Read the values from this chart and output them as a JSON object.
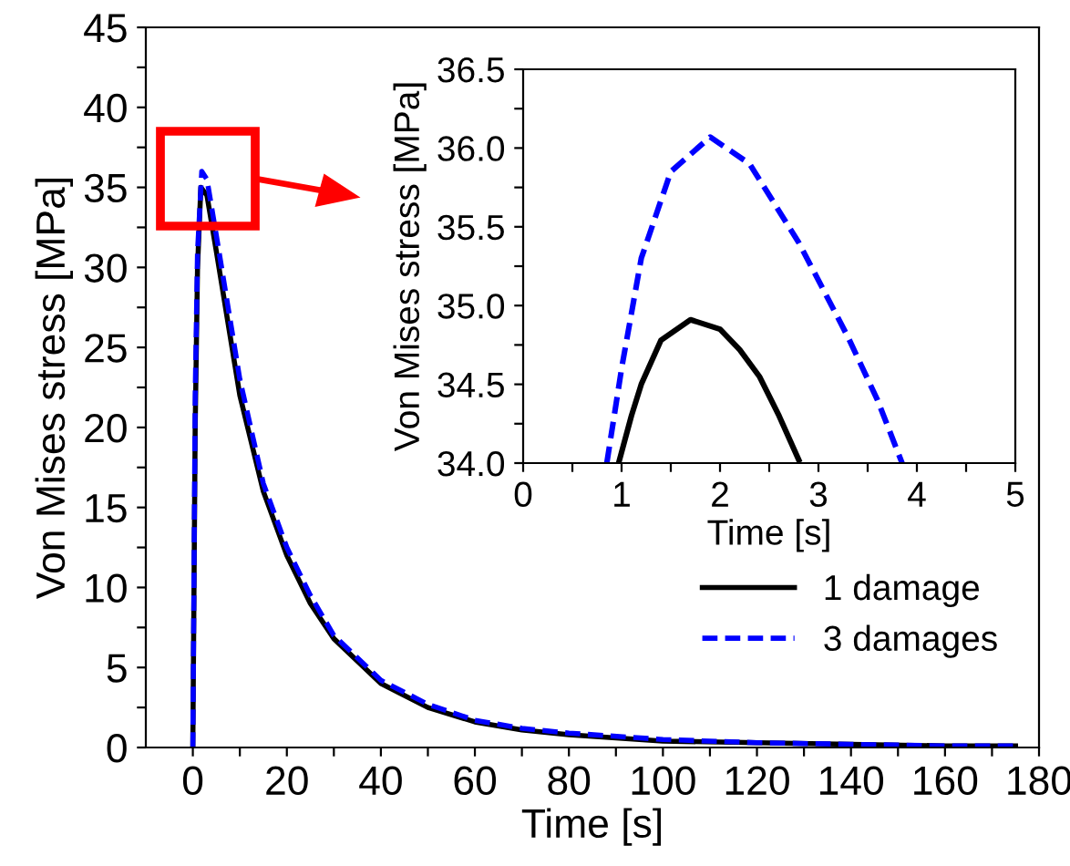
{
  "chart_data": [
    {
      "type": "line",
      "xlabel": "Time [s]",
      "ylabel": "Von Mises stress [MPa]",
      "xlim": [
        -10,
        180
      ],
      "ylim": [
        0,
        45
      ],
      "xticks": [
        0,
        {
          "value": 10,
          "label": null
        },
        20,
        {
          "value": 30,
          "label": null
        },
        40,
        {
          "value": 50,
          "label": null
        },
        60,
        {
          "value": 70,
          "label": null
        },
        80,
        {
          "value": 90,
          "label": null
        },
        100,
        {
          "value": 110,
          "label": null
        },
        120,
        {
          "value": 130,
          "label": null
        },
        140,
        {
          "value": 150,
          "label": null
        },
        160,
        {
          "value": 170,
          "label": null
        },
        180
      ],
      "yticks": [
        0,
        {
          "value": 2.5,
          "label": null
        },
        5,
        {
          "value": 7.5,
          "label": null
        },
        10,
        {
          "value": 12.5,
          "label": null
        },
        15,
        {
          "value": 17.5,
          "label": null
        },
        20,
        {
          "value": 22.5,
          "label": null
        },
        25,
        {
          "value": 27.5,
          "label": null
        },
        30,
        {
          "value": 32.5,
          "label": null
        },
        35,
        {
          "value": 37.5,
          "label": null
        },
        40,
        {
          "value": 42.5,
          "label": null
        },
        45
      ],
      "grid": false,
      "legend": "bottom right",
      "series": [
        {
          "name": "1 damage",
          "color": "#000000",
          "line_style": "solid",
          "x": [
            0,
            0.5,
            1,
            1.7,
            3,
            5,
            10,
            15,
            20,
            25,
            30,
            40,
            50,
            60,
            70,
            80,
            100,
            120,
            140,
            160,
            175
          ],
          "values": [
            0,
            20,
            30,
            35,
            34.5,
            31,
            22,
            16,
            12,
            9,
            6.8,
            4,
            2.5,
            1.6,
            1.1,
            0.8,
            0.4,
            0.3,
            0.2,
            0.1,
            0.1
          ]
        },
        {
          "name": "3 damages",
          "color": "#0000ff",
          "line_style": "dashed",
          "x": [
            0,
            0.5,
            1,
            1.9,
            3,
            5,
            10,
            15,
            20,
            25,
            30,
            40,
            50,
            60,
            70,
            80,
            100,
            120,
            140,
            160,
            175
          ],
          "values": [
            0,
            22,
            31,
            36,
            35.5,
            32,
            23,
            16.5,
            12.5,
            9.5,
            7,
            4.2,
            2.7,
            1.7,
            1.2,
            0.9,
            0.5,
            0.3,
            0.2,
            0.1,
            0.1
          ]
        }
      ]
    },
    {
      "type": "line",
      "xlabel": "Time [s]",
      "ylabel": "Von Mises stress [MPa]",
      "xlim": [
        0,
        5
      ],
      "ylim": [
        34.0,
        36.5
      ],
      "xticks": [
        0,
        {
          "value": 0.5,
          "label": null
        },
        1,
        {
          "value": 1.5,
          "label": null
        },
        2,
        {
          "value": 2.5,
          "label": null
        },
        3,
        {
          "value": 3.5,
          "label": null
        },
        4,
        {
          "value": 4.5,
          "label": null
        },
        5
      ],
      "yticks": [
        {
          "value": 34.0,
          "label": "34.0"
        },
        {
          "value": 34.25,
          "label": null
        },
        {
          "value": 34.5,
          "label": "34.5"
        },
        {
          "value": 34.75,
          "label": null
        },
        {
          "value": 35.0,
          "label": "35.0"
        },
        {
          "value": 35.25,
          "label": null
        },
        {
          "value": 35.5,
          "label": "35.5"
        },
        {
          "value": 35.75,
          "label": null
        },
        {
          "value": 36.0,
          "label": "36.0"
        },
        {
          "value": 36.25,
          "label": null
        },
        {
          "value": 36.5,
          "label": "36.5"
        }
      ],
      "grid": false,
      "series": [
        {
          "color": "#000000",
          "line_style": "solid",
          "x": [
            0.97,
            1.1,
            1.2,
            1.4,
            1.7,
            2.0,
            2.2,
            2.4,
            2.6,
            2.8
          ],
          "values": [
            34.0,
            34.3,
            34.5,
            34.78,
            34.91,
            34.85,
            34.72,
            34.55,
            34.3,
            34.02
          ]
        },
        {
          "color": "#0000ff",
          "line_style": "dashed",
          "x": [
            0.85,
            1.0,
            1.2,
            1.5,
            1.9,
            2.3,
            2.8,
            3.3,
            3.6,
            3.85
          ],
          "values": [
            34.0,
            34.6,
            35.3,
            35.85,
            36.07,
            35.9,
            35.4,
            34.8,
            34.4,
            34.0
          ]
        }
      ]
    }
  ]
}
